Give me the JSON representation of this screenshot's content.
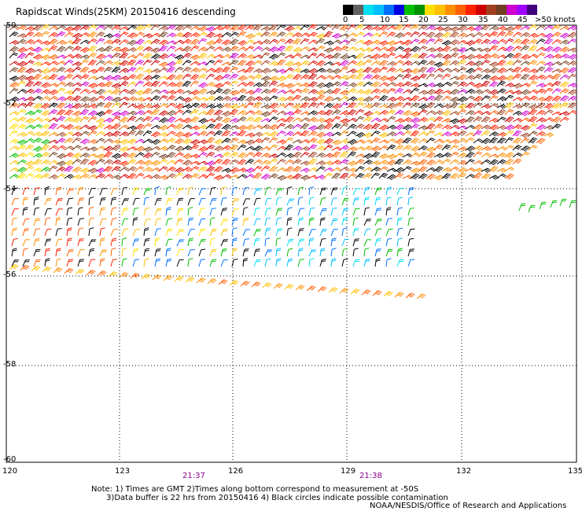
{
  "title": "Rapidscat Winds(25KM) 20150416 descending",
  "legend": {
    "colors": [
      "#000000",
      "#606060",
      "#00e0f0",
      "#00c0ff",
      "#0070ff",
      "#0000e0",
      "#00c000",
      "#009000",
      "#ffe000",
      "#ffc000",
      "#ff9000",
      "#ff6000",
      "#ff2000",
      "#d00000",
      "#a04020",
      "#704020",
      "#d000d0",
      "#a000ff",
      "#400080"
    ],
    "ticks": [
      "0",
      "5",
      "10",
      "15",
      "20",
      "25",
      "30",
      "35",
      "40",
      "45",
      ">50 knots"
    ]
  },
  "axes": {
    "lat_labels": [
      "-50",
      "-52",
      "-54",
      "-56",
      "-58",
      "-60"
    ],
    "lon_labels": [
      "120",
      "123",
      "126",
      "129",
      "132",
      "135"
    ]
  },
  "times": [
    "21:37",
    "21:38"
  ],
  "note": "Note: 1) Times are GMT 2)Times along bottom correspond to measurement at -50S\n      3)Data buffer is 22 hrs from 20150416 4) Black circles indicate possible contamination",
  "credit": "NOAA/NESDIS/Office of Research and Applications"
}
